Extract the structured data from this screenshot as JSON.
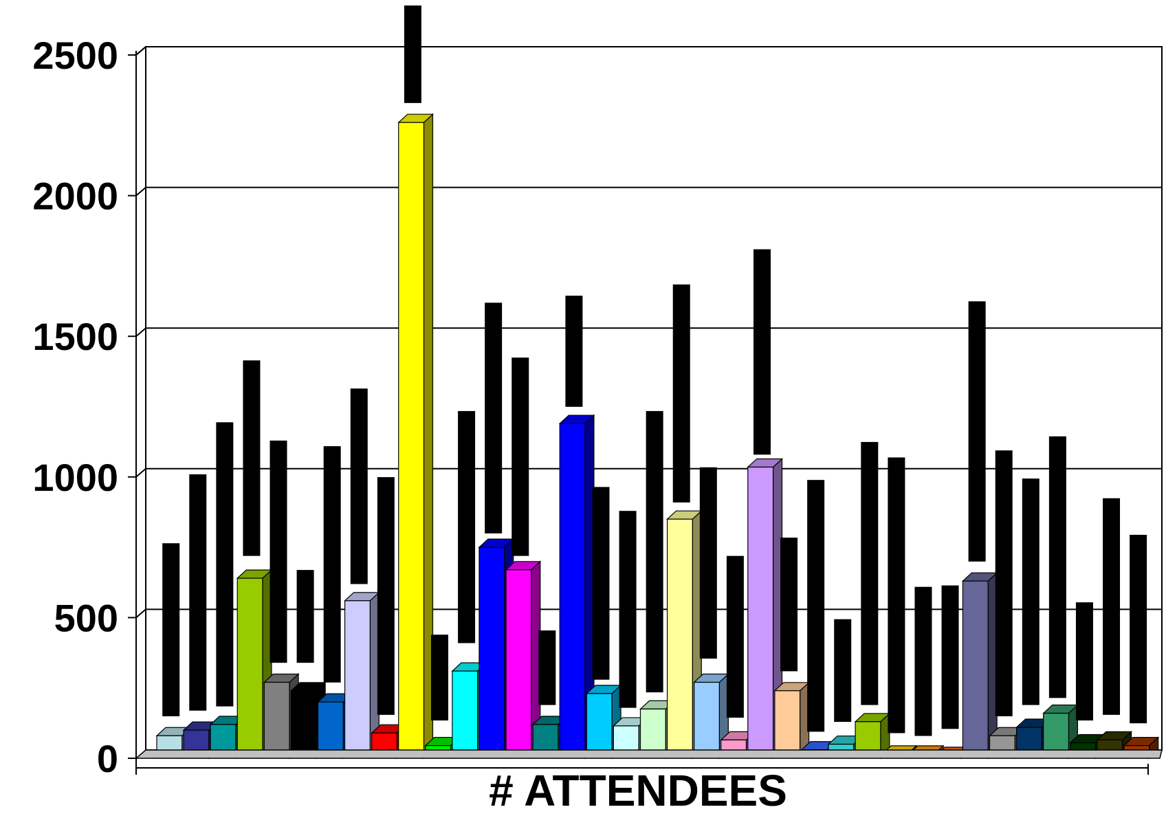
{
  "chart_data": {
    "type": "bar",
    "title": "",
    "xlabel": "# ATTENDEES",
    "ylabel": "",
    "ylim": [
      0,
      2500
    ],
    "yticks": [
      0,
      500,
      1000,
      1500,
      2000,
      2500
    ],
    "grid": true,
    "legend": "none",
    "values": [
      80,
      100,
      120,
      640,
      270,
      240,
      200,
      560,
      90,
      2260,
      45,
      310,
      750,
      670,
      120,
      1190,
      230,
      115,
      175,
      850,
      270,
      65,
      1035,
      240,
      30,
      50,
      130,
      15,
      15,
      10,
      630,
      80,
      110,
      160,
      55,
      65,
      45
    ],
    "colors": [
      "#b8e0e4",
      "#333399",
      "#009999",
      "#99cc00",
      "#808080",
      "#000000",
      "#0066cc",
      "#ccccff",
      "#ff0000",
      "#ffff00",
      "#00ee00",
      "#00ffff",
      "#0000ff",
      "#ff00ff",
      "#008080",
      "#0000ff",
      "#00ccff",
      "#ccffff",
      "#ccffcc",
      "#ffff99",
      "#99ccff",
      "#ff99cc",
      "#cc99ff",
      "#ffcc99",
      "#3366ff",
      "#33cccc",
      "#99cc00",
      "#ffcc00",
      "#ff9900",
      "#ff6600",
      "#666699",
      "#969696",
      "#003366",
      "#339966",
      "#003300",
      "#333300",
      "#993300"
    ],
    "overlay_bars": [
      {
        "bottom": 120,
        "top": 735
      },
      {
        "bottom": 140,
        "top": 980
      },
      {
        "bottom": 155,
        "top": 1165
      },
      {
        "bottom": 690,
        "top": 1385
      },
      {
        "bottom": 310,
        "top": 1100
      },
      {
        "bottom": 310,
        "top": 640
      },
      {
        "bottom": 240,
        "top": 1080
      },
      {
        "bottom": 590,
        "top": 1285
      },
      {
        "bottom": 125,
        "top": 970
      },
      {
        "bottom": 2300,
        "top": 2660
      },
      {
        "bottom": 105,
        "top": 410
      },
      {
        "bottom": 380,
        "top": 1205
      },
      {
        "bottom": 770,
        "top": 1590
      },
      {
        "bottom": 690,
        "top": 1395
      },
      {
        "bottom": 160,
        "top": 425
      },
      {
        "bottom": 1220,
        "top": 1615
      },
      {
        "bottom": 250,
        "top": 935
      },
      {
        "bottom": 150,
        "top": 850
      },
      {
        "bottom": 205,
        "top": 1205
      },
      {
        "bottom": 880,
        "top": 1655
      },
      {
        "bottom": 325,
        "top": 1005
      },
      {
        "bottom": 115,
        "top": 690
      },
      {
        "bottom": 1050,
        "top": 1780
      },
      {
        "bottom": 280,
        "top": 755
      },
      {
        "bottom": 65,
        "top": 960
      },
      {
        "bottom": 100,
        "top": 465
      },
      {
        "bottom": 160,
        "top": 1095
      },
      {
        "bottom": 60,
        "top": 1040
      },
      {
        "bottom": 50,
        "top": 580
      },
      {
        "bottom": 75,
        "top": 585
      },
      {
        "bottom": 670,
        "top": 1595
      },
      {
        "bottom": 120,
        "top": 1065
      },
      {
        "bottom": 160,
        "top": 965
      },
      {
        "bottom": 185,
        "top": 1115
      },
      {
        "bottom": 105,
        "top": 525
      },
      {
        "bottom": 125,
        "top": 895
      },
      {
        "bottom": 95,
        "top": 765
      }
    ]
  }
}
